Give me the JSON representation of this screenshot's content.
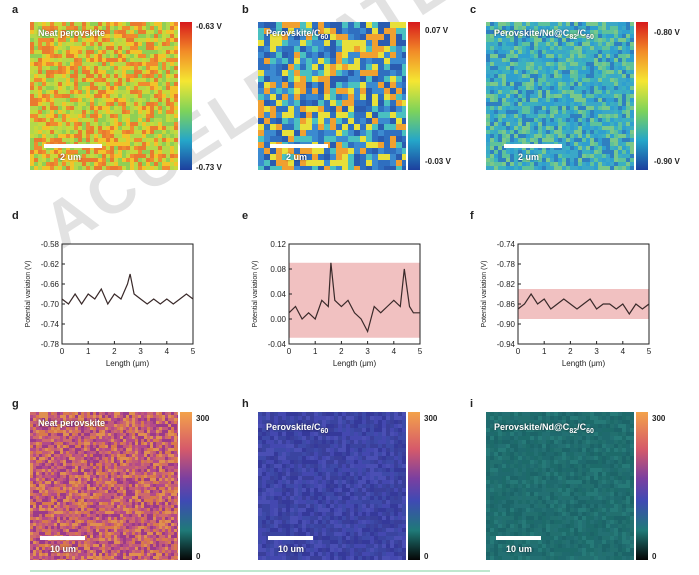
{
  "panels": {
    "a": {
      "label": "a",
      "title": "Neat perovskite",
      "scale": "2 um",
      "cb_max": "-0.63 V",
      "cb_min": "-0.73 V"
    },
    "b": {
      "label": "b",
      "title_main": "Perovskite/C",
      "title_sub": "60",
      "scale": "2 um",
      "cb_max": "0.07 V",
      "cb_min": "-0.03 V"
    },
    "c": {
      "label": "c",
      "title_main": "Perovskite/Nd@C",
      "title_sub1": "82",
      "title_mid": "/C",
      "title_sub2": "60",
      "scale": "2 um",
      "cb_max": "-0.80 V",
      "cb_min": "-0.90 V"
    },
    "g": {
      "label": "g",
      "title": "Neat perovskite",
      "scale": "10 um",
      "cb_max": "300",
      "cb_min": "0"
    },
    "h": {
      "label": "h",
      "title_main": "Perovskite/C",
      "title_sub": "60",
      "scale": "10 um",
      "cb_max": "300",
      "cb_min": "0"
    },
    "i": {
      "label": "i",
      "title_main": "Perovskite/Nd@C",
      "title_sub1": "82",
      "title_mid": "/C",
      "title_sub2": "60",
      "scale": "10 um",
      "cb_max": "300",
      "cb_min": "0"
    }
  },
  "line_labels": {
    "d": "d",
    "e": "e",
    "f": "f"
  },
  "chart_data": [
    {
      "type": "line",
      "panel": "d",
      "xlabel": "Length (μm)",
      "ylabel": "Potential variation (V)",
      "xlim": [
        0,
        5
      ],
      "ylim": [
        -0.78,
        -0.58
      ],
      "xticks": [
        "0",
        "1",
        "2",
        "3",
        "4",
        "5"
      ],
      "yticks": [
        "-0.78",
        "-0.74",
        "-0.70",
        "-0.66",
        "-0.62",
        "-0.58"
      ],
      "band": null,
      "series": [
        {
          "x": [
            0,
            0.25,
            0.5,
            0.75,
            1,
            1.25,
            1.5,
            1.75,
            2,
            2.25,
            2.5,
            2.6,
            2.75,
            3,
            3.25,
            3.5,
            3.75,
            4,
            4.25,
            4.5,
            4.75,
            5
          ],
          "y": [
            -0.69,
            -0.7,
            -0.68,
            -0.7,
            -0.68,
            -0.69,
            -0.67,
            -0.7,
            -0.68,
            -0.69,
            -0.66,
            -0.64,
            -0.68,
            -0.69,
            -0.7,
            -0.69,
            -0.7,
            -0.69,
            -0.7,
            -0.69,
            -0.68,
            -0.69
          ]
        }
      ]
    },
    {
      "type": "line",
      "panel": "e",
      "xlabel": "Length (μm)",
      "ylabel": "Potential variation (V)",
      "xlim": [
        0,
        5
      ],
      "ylim": [
        -0.04,
        0.12
      ],
      "xticks": [
        "0",
        "1",
        "2",
        "3",
        "4",
        "5"
      ],
      "yticks": [
        "-0.04",
        "0.00",
        "0.04",
        "0.08",
        "0.12"
      ],
      "band": [
        -0.03,
        0.09
      ],
      "series": [
        {
          "x": [
            0,
            0.25,
            0.5,
            0.75,
            1,
            1.25,
            1.5,
            1.6,
            1.75,
            2,
            2.25,
            2.5,
            2.75,
            3,
            3.25,
            3.5,
            3.75,
            4,
            4.25,
            4.4,
            4.6,
            4.75,
            5
          ],
          "y": [
            0.01,
            0.02,
            0.0,
            0.01,
            0.0,
            0.03,
            0.02,
            0.09,
            0.03,
            0.02,
            0.03,
            0.01,
            0.0,
            -0.02,
            0.02,
            0.01,
            0.02,
            0.03,
            0.02,
            0.08,
            0.02,
            0.01,
            0.01
          ]
        }
      ]
    },
    {
      "type": "line",
      "panel": "f",
      "xlabel": "Length (μm)",
      "ylabel": "Potential variation (V)",
      "xlim": [
        0,
        5
      ],
      "ylim": [
        -0.94,
        -0.74
      ],
      "xticks": [
        "0",
        "1",
        "2",
        "3",
        "4",
        "5"
      ],
      "yticks": [
        "-0.94",
        "-0.90",
        "-0.86",
        "-0.82",
        "-0.78",
        "-0.74"
      ],
      "band": [
        -0.89,
        -0.83
      ],
      "series": [
        {
          "x": [
            0,
            0.25,
            0.5,
            0.75,
            1,
            1.25,
            1.5,
            1.75,
            2,
            2.25,
            2.5,
            2.75,
            3,
            3.25,
            3.5,
            3.75,
            4,
            4.25,
            4.5,
            4.75,
            5
          ],
          "y": [
            -0.87,
            -0.86,
            -0.84,
            -0.86,
            -0.85,
            -0.87,
            -0.86,
            -0.85,
            -0.86,
            -0.87,
            -0.86,
            -0.85,
            -0.87,
            -0.86,
            -0.86,
            -0.87,
            -0.86,
            -0.88,
            -0.86,
            -0.87,
            -0.86
          ]
        }
      ]
    }
  ],
  "map_colors": {
    "kpfm_a": [
      "#f2c42a",
      "#c7d93b",
      "#8fcf55",
      "#e97a2f",
      "#f08a2f",
      "#b3d84a"
    ],
    "kpfm_b": [
      "#2f6fc0",
      "#3b8ad0",
      "#e8e03a",
      "#f0a030",
      "#4ac0c0",
      "#2a5cb0"
    ],
    "kpfm_c": [
      "#2f9fcf",
      "#3bb0c0",
      "#5ec29a",
      "#2f7fc0",
      "#7ac88a",
      "#3aa7c8"
    ],
    "pl_g": [
      "#b34a8a",
      "#d97a4a",
      "#c25a7a",
      "#e09050",
      "#9a3a8a",
      "#cf6a6a"
    ],
    "pl_h": [
      "#3a3f9a",
      "#3d4aa8",
      "#4448b0",
      "#35399a",
      "#4a4fb4",
      "#3a44a0"
    ],
    "pl_i": [
      "#1f6a6e",
      "#237073",
      "#1c6468",
      "#267a78",
      "#1d6b6a",
      "#22706f"
    ]
  },
  "watermark": "ACCELERATED ARTICLE PREVIEW"
}
